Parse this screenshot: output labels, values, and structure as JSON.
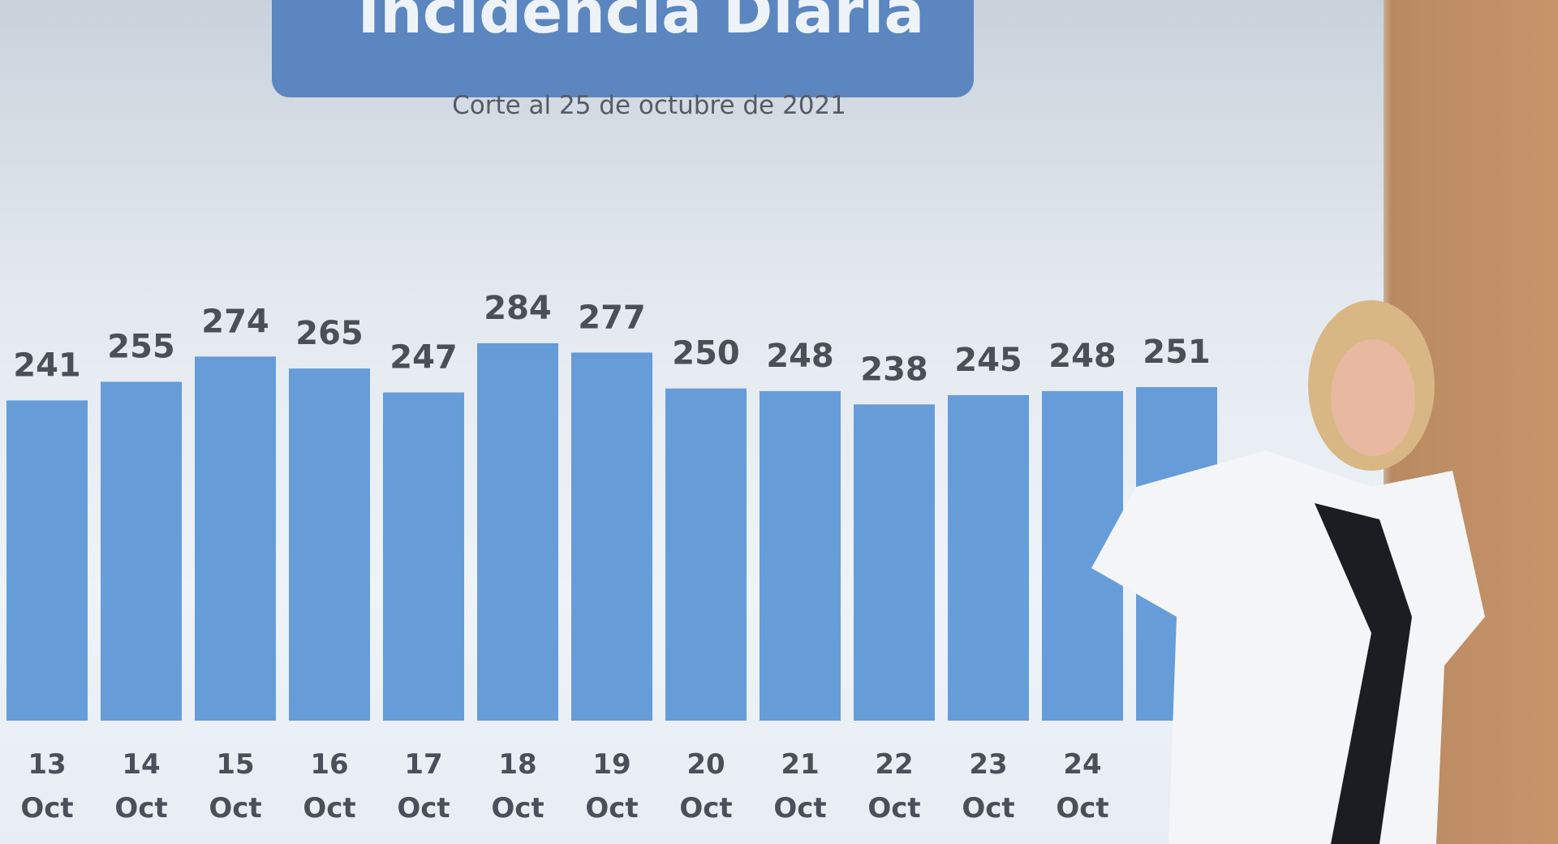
{
  "chart_data": {
    "type": "bar",
    "title": "Incidencia Diaria",
    "subtitle": "Corte al 25 de octubre de 2021",
    "categories": [
      "13 Oct",
      "14 Oct",
      "15 Oct",
      "16 Oct",
      "17 Oct",
      "18 Oct",
      "19 Oct",
      "20 Oct",
      "21 Oct",
      "22 Oct",
      "23 Oct",
      "24 Oct",
      null
    ],
    "values": [
      241,
      255,
      274,
      265,
      247,
      284,
      277,
      250,
      248,
      238,
      245,
      248,
      251
    ],
    "color": "#4f8ed3"
  }
}
